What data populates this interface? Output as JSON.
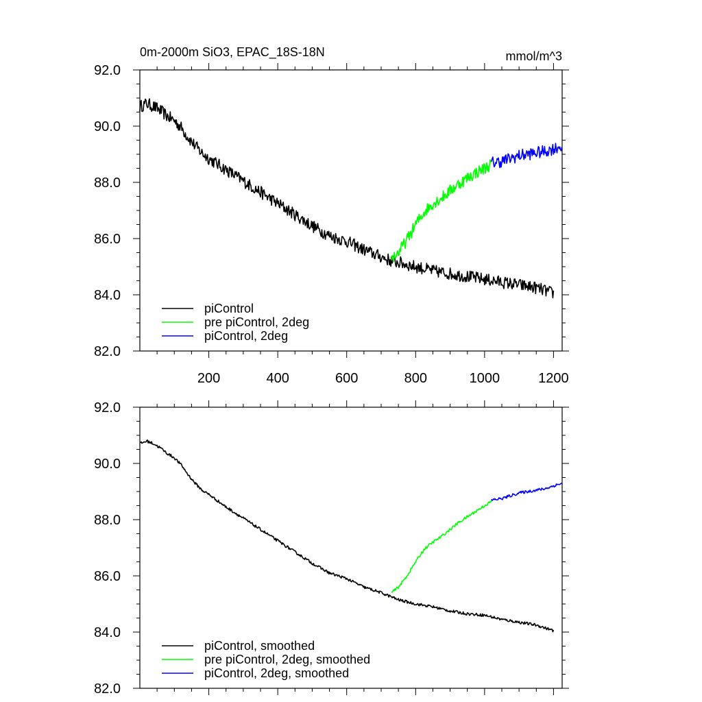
{
  "chart_data": [
    {
      "type": "line",
      "title": "0m-2000m SiO3, EPAC_18S-18N",
      "units": "mmol/m^3",
      "xlim": [
        0,
        1225
      ],
      "ylim": [
        82.0,
        92.0
      ],
      "x_ticks": [
        200,
        400,
        600,
        800,
        1000,
        1200
      ],
      "x_tick_labels": [
        "200",
        "400",
        "600",
        "800",
        "1000",
        "1200"
      ],
      "y_ticks": [
        82.0,
        84.0,
        86.0,
        88.0,
        90.0,
        92.0
      ],
      "y_tick_labels": [
        "82.0",
        "84.0",
        "86.0",
        "88.0",
        "90.0",
        "92.0"
      ],
      "legend_position": "bottom-left",
      "series": [
        {
          "name": "piControl",
          "color": "#000000",
          "x": [
            0,
            20,
            40,
            60,
            80,
            100,
            120,
            140,
            160,
            180,
            200,
            250,
            300,
            350,
            400,
            450,
            500,
            550,
            600,
            650,
            700,
            730,
            750,
            800,
            850,
            900,
            950,
            1000,
            1050,
            1100,
            1150,
            1200
          ],
          "y": [
            90.7,
            90.8,
            90.7,
            90.55,
            90.35,
            90.2,
            89.95,
            89.6,
            89.3,
            89.05,
            88.85,
            88.45,
            88.05,
            87.65,
            87.25,
            86.85,
            86.45,
            86.1,
            85.9,
            85.6,
            85.35,
            85.2,
            85.15,
            85.0,
            84.85,
            84.75,
            84.65,
            84.55,
            84.45,
            84.35,
            84.25,
            84.05
          ]
        },
        {
          "name": "pre piControl, 2deg",
          "color": "#00ff00",
          "x": [
            730,
            750,
            775,
            800,
            825,
            850,
            875,
            900,
            925,
            950,
            975,
            1000,
            1020
          ],
          "y": [
            85.3,
            85.5,
            85.95,
            86.5,
            86.95,
            87.25,
            87.45,
            87.7,
            87.95,
            88.15,
            88.35,
            88.5,
            88.65
          ]
        },
        {
          "name": "piControl, 2deg",
          "color": "#0000ff",
          "x": [
            1020,
            1050,
            1075,
            1100,
            1125,
            1150,
            1175,
            1200,
            1225
          ],
          "y": [
            88.7,
            88.75,
            88.85,
            88.95,
            89.0,
            89.05,
            89.1,
            89.2,
            89.3
          ]
        }
      ]
    },
    {
      "type": "line",
      "xlim": [
        0,
        1225
      ],
      "ylim": [
        82.0,
        92.0
      ],
      "x_ticks": [
        200,
        400,
        600,
        800,
        1000,
        1200
      ],
      "y_ticks": [
        82.0,
        84.0,
        86.0,
        88.0,
        90.0,
        92.0
      ],
      "y_tick_labels": [
        "82.0",
        "84.0",
        "86.0",
        "88.0",
        "90.0",
        "92.0"
      ],
      "legend_position": "bottom-left",
      "series": [
        {
          "name": "piControl, smoothed",
          "color": "#000000",
          "x": [
            0,
            20,
            40,
            60,
            80,
            100,
            120,
            140,
            160,
            180,
            200,
            250,
            300,
            350,
            400,
            450,
            500,
            550,
            600,
            650,
            700,
            730,
            750,
            800,
            850,
            900,
            950,
            1000,
            1050,
            1100,
            1150,
            1200
          ],
          "y": [
            90.7,
            90.8,
            90.7,
            90.55,
            90.35,
            90.2,
            89.95,
            89.6,
            89.3,
            89.05,
            88.9,
            88.45,
            88.05,
            87.65,
            87.25,
            86.85,
            86.45,
            86.1,
            85.9,
            85.6,
            85.4,
            85.25,
            85.15,
            85.0,
            84.9,
            84.75,
            84.65,
            84.6,
            84.45,
            84.35,
            84.25,
            84.05
          ]
        },
        {
          "name": "pre piControl, 2deg, smoothed",
          "color": "#00ff00",
          "x": [
            730,
            750,
            775,
            800,
            825,
            850,
            875,
            900,
            925,
            950,
            975,
            1000,
            1020
          ],
          "y": [
            85.4,
            85.6,
            86.0,
            86.5,
            86.95,
            87.2,
            87.4,
            87.65,
            87.9,
            88.1,
            88.3,
            88.5,
            88.65
          ]
        },
        {
          "name": "piControl, 2deg, smoothed",
          "color": "#0000ff",
          "x": [
            1020,
            1050,
            1075,
            1100,
            1125,
            1150,
            1175,
            1200,
            1225
          ],
          "y": [
            88.7,
            88.75,
            88.85,
            88.95,
            89.0,
            89.05,
            89.1,
            89.2,
            89.3
          ]
        }
      ]
    }
  ]
}
